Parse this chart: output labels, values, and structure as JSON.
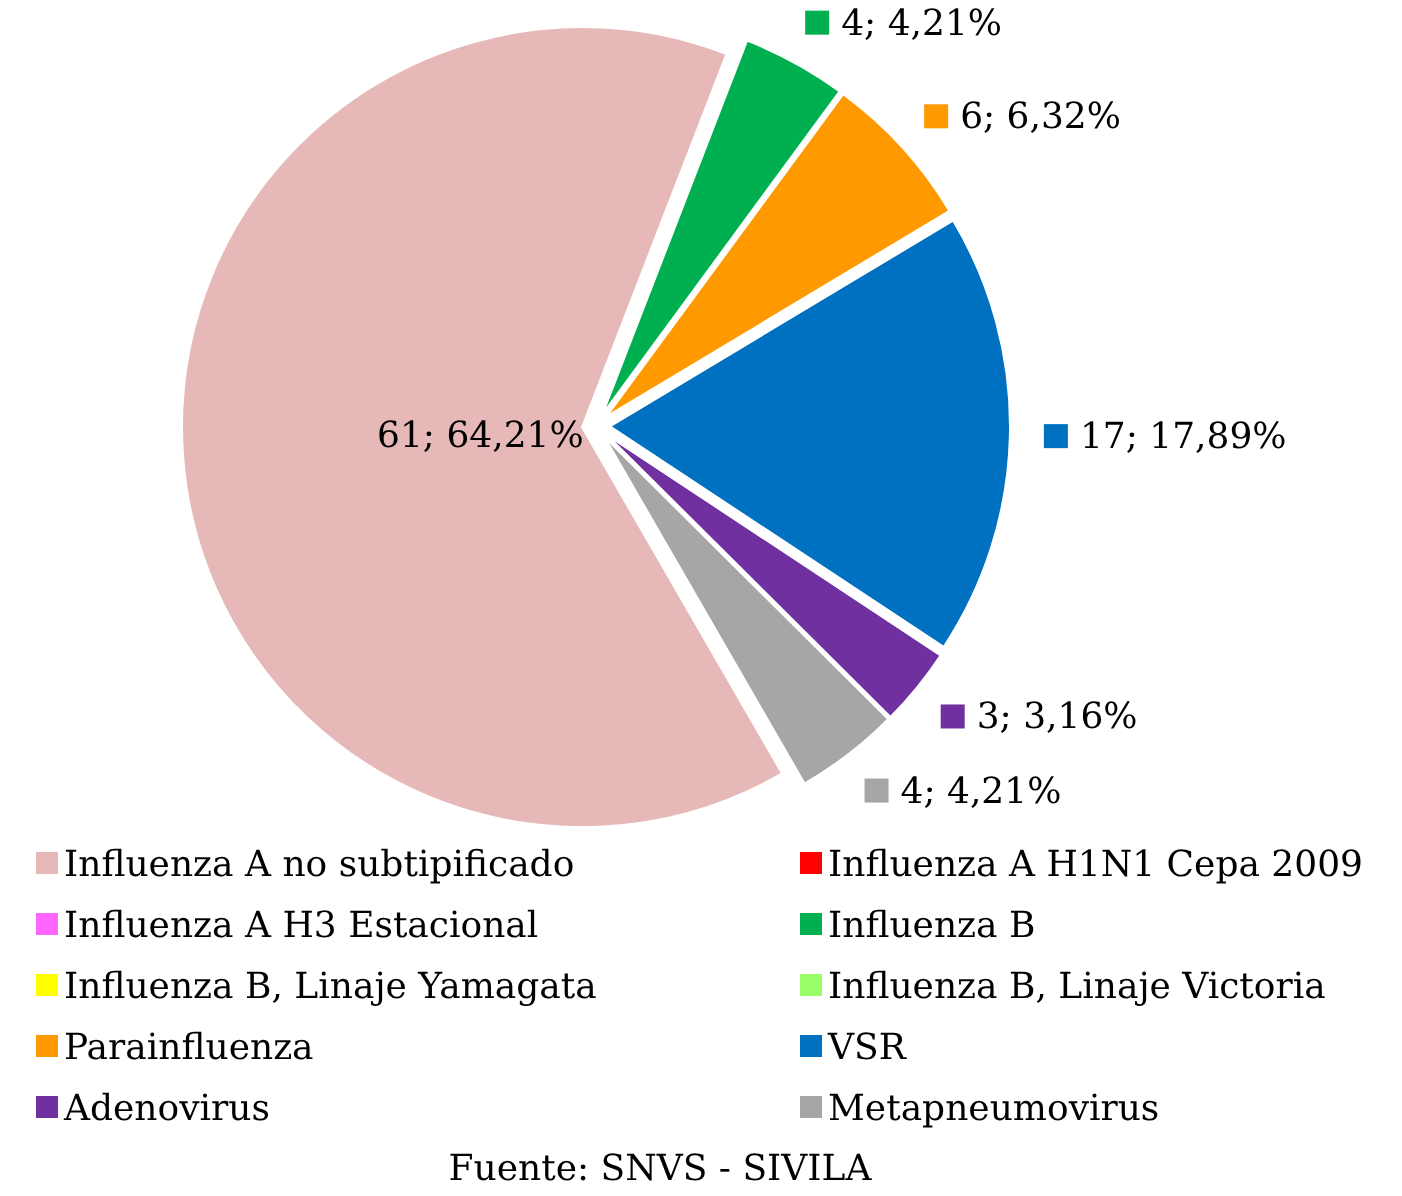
{
  "chart_data": {
    "type": "pie",
    "categories": [
      "Influenza A no subtipificado",
      "Influenza A H1N1 Cepa 2009",
      "Influenza A H3 Estacional",
      "Influenza B",
      "Influenza B, Linaje Yamagata",
      "Influenza B, Linaje Victoria",
      "Parainfluenza",
      "VSR",
      "Adenovirus",
      "Metapneumovirus"
    ],
    "values": [
      61,
      0,
      0,
      4,
      0,
      0,
      6,
      17,
      3,
      4
    ],
    "colors": [
      "#e6b8b7",
      "#ff0000",
      "#ff66ff",
      "#00b050",
      "#ffff00",
      "#99ff66",
      "#ff9900",
      "#0070c0",
      "#7030a0",
      "#a6a6a6"
    ],
    "value_labels": [
      "61; 64,21%",
      null,
      null,
      "4; 4,21%",
      null,
      null,
      "6; 6,32%",
      "17; 17,89%",
      "3; 3,16%",
      "4; 4,21%"
    ],
    "legend": "bottom",
    "annotations": [
      "Fuente: SNVS  - SIVILA"
    ]
  }
}
